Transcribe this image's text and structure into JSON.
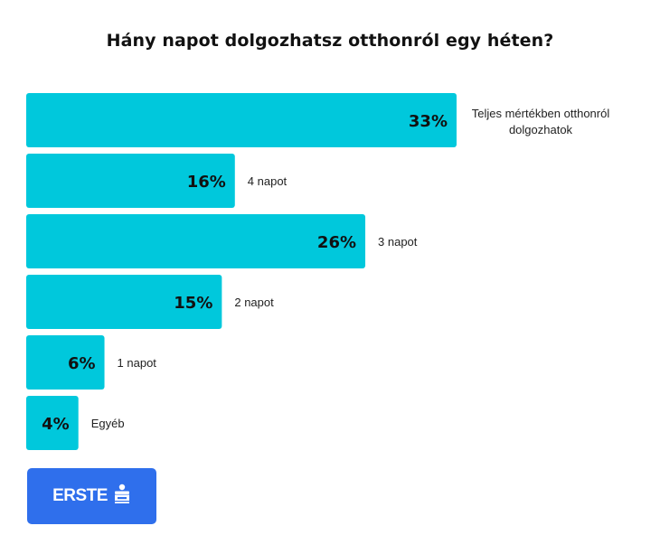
{
  "chart_data": {
    "type": "bar",
    "orientation": "horizontal",
    "title": "Hány napot dolgozhatsz otthonról egy héten?",
    "categories": [
      "Teljes mértékben otthonról dolgozhatok",
      "4 napot",
      "3 napot",
      "2 napot",
      "1 napot",
      "Egyéb"
    ],
    "label_lines": [
      [
        "Teljes mértékben otthonról",
        "dolgozhatok"
      ],
      [
        "4 napot"
      ],
      [
        "3 napot"
      ],
      [
        "2 napot"
      ],
      [
        "1 napot"
      ],
      [
        "Egyéb"
      ]
    ],
    "values": [
      33,
      16,
      26,
      15,
      6,
      4
    ],
    "value_labels": [
      "33%",
      "16%",
      "26%",
      "15%",
      "6%",
      "4%"
    ],
    "unit": "%",
    "xlim": [
      0,
      33
    ],
    "grid": false,
    "legend": "none",
    "bar_color": "#00c8dc"
  },
  "logo": {
    "text": "ERSTE",
    "mark_icon": "erste-s-icon",
    "background": "#2f6fec",
    "text_color": "#ffffff"
  }
}
